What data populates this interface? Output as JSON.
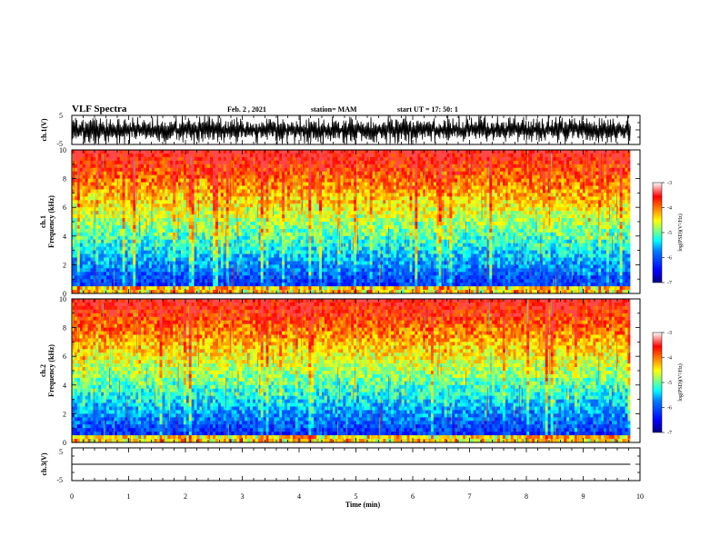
{
  "header": {
    "title": "VLF Spectra",
    "date": "Feb. 2  , 2021",
    "station": "station= MAM",
    "start": "start  UT  =    17: 50: 1"
  },
  "chart_data": [
    {
      "type": "line",
      "ylabel": "ch.1(V)",
      "ylim": [
        -5,
        5
      ],
      "yticks": [
        "5",
        "-5"
      ],
      "description_of_signal": "dense noise waveform"
    },
    {
      "type": "heatmap",
      "ylabel_line1": "ch.1",
      "ylabel_line2": "Frequency  (kHz)",
      "ylim": [
        0,
        10
      ],
      "yticks": [
        "0",
        "2",
        "4",
        "6",
        "8",
        "10"
      ],
      "colorbar": {
        "label": "log(PSD)(V²/Hz)",
        "ticks": [
          "-3",
          "-4",
          "-5",
          "-6",
          "-7"
        ],
        "range": [
          -7,
          -3
        ]
      }
    },
    {
      "type": "heatmap",
      "ylabel_line1": "ch.2",
      "ylabel_line2": "Frequency  (kHz)",
      "ylim": [
        0,
        10
      ],
      "yticks": [
        "0",
        "2",
        "4",
        "6",
        "8",
        "10"
      ],
      "colorbar": {
        "label": "log(PSD)(V²/Hz)",
        "ticks": [
          "-3",
          "-4",
          "-5",
          "-6",
          "-7"
        ],
        "range": [
          -7,
          -3
        ]
      }
    },
    {
      "type": "line",
      "ylabel": "ch.3(V)",
      "ylim": [
        -5,
        5
      ],
      "yticks": [
        "5",
        "-5"
      ],
      "values": [
        0
      ]
    }
  ],
  "xaxis": {
    "label": "Time  (min)",
    "xlim": [
      0,
      10
    ],
    "ticks": [
      "0",
      "1",
      "2",
      "3",
      "4",
      "5",
      "6",
      "7",
      "8",
      "9",
      "10"
    ],
    "data_end": 9.83
  },
  "colors": {
    "line": "#000000",
    "colormap": [
      "#00007f",
      "#0000ff",
      "#0080ff",
      "#00ffff",
      "#80ff80",
      "#ffff00",
      "#ff8000",
      "#ff0000",
      "#ffffff"
    ]
  }
}
